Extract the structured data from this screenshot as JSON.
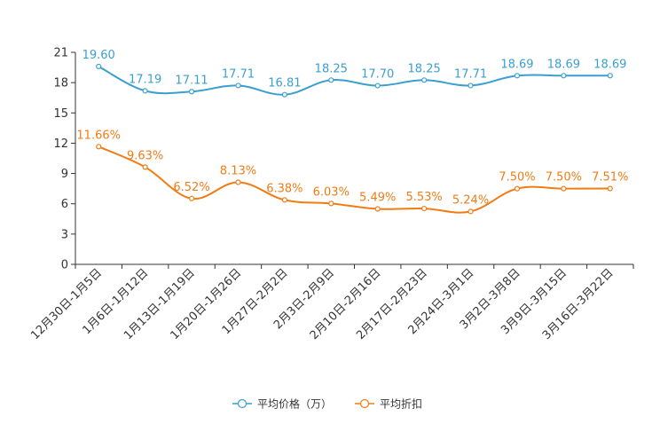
{
  "chart_data": {
    "type": "line",
    "categories": [
      "12月30日-1月5日",
      "1月6日-1月12日",
      "1月13日-1月19日",
      "1月20日-1月26日",
      "1月27日-2月2日",
      "2月3日-2月9日",
      "2月10日-2月16日",
      "2月17日-2月23日",
      "2月24日-3月1日",
      "3月2日-3月8日",
      "3月9日-3月15日",
      "3月16日-3月22日"
    ],
    "ylim": [
      0,
      21
    ],
    "yticks": [
      0,
      3,
      6,
      9,
      12,
      15,
      18,
      21
    ],
    "series": [
      {
        "name": "平均价格（万）",
        "color": "#3a9fd0",
        "values": [
          19.6,
          17.19,
          17.11,
          17.71,
          16.81,
          18.25,
          17.7,
          18.25,
          17.71,
          18.69,
          18.69,
          18.69
        ],
        "labels": [
          "19.60",
          "17.19",
          "17.11",
          "17.71",
          "16.81",
          "18.25",
          "17.70",
          "18.25",
          "17.71",
          "18.69",
          "18.69",
          "18.69"
        ]
      },
      {
        "name": "平均折扣",
        "color": "#f27c14",
        "values": [
          11.66,
          9.63,
          6.52,
          8.13,
          6.38,
          6.03,
          5.49,
          5.53,
          5.24,
          7.5,
          7.5,
          7.51
        ],
        "labels": [
          "11.66%",
          "9.63%",
          "6.52%",
          "8.13%",
          "6.38%",
          "6.03%",
          "5.49%",
          "5.53%",
          "5.24%",
          "7.50%",
          "7.50%",
          "7.51%"
        ]
      }
    ]
  }
}
